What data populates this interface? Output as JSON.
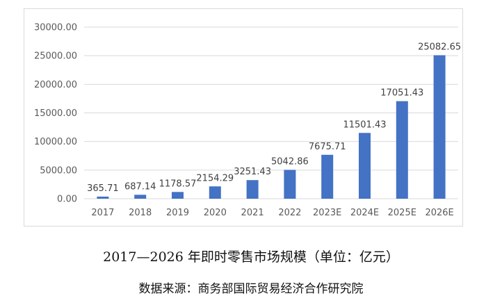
{
  "chart_data": {
    "type": "bar",
    "categories": [
      "2017",
      "2018",
      "2019",
      "2020",
      "2021",
      "2022",
      "2023E",
      "2024E",
      "2025E",
      "2026E"
    ],
    "values": [
      365.71,
      687.14,
      1178.57,
      2154.29,
      3251.43,
      5042.86,
      7675.71,
      11501.43,
      17051.43,
      25082.65
    ],
    "value_labels": [
      "365.71",
      "687.14",
      "1178.57",
      "2154.29",
      "3251.43",
      "5042.86",
      "7675.71",
      "11501.43",
      "17051.43",
      "25082.65"
    ],
    "ylim": [
      0,
      30000
    ],
    "yticks": [
      0,
      5000,
      10000,
      15000,
      20000,
      25000,
      30000
    ],
    "ytick_labels": [
      "0.00",
      "5000.00",
      "10000.00",
      "15000.00",
      "20000.00",
      "25000.00",
      "30000.00"
    ],
    "grid": true,
    "legend": "none",
    "title": "2017—2026 年即时零售市场规模（单位：亿元）",
    "source": "数据来源：商务部国际贸易经济合作研究院",
    "colors": {
      "bar": "#4472c4",
      "gridline": "#d9d9d9",
      "axis_text": "#595959",
      "label_text": "#404040"
    }
  }
}
